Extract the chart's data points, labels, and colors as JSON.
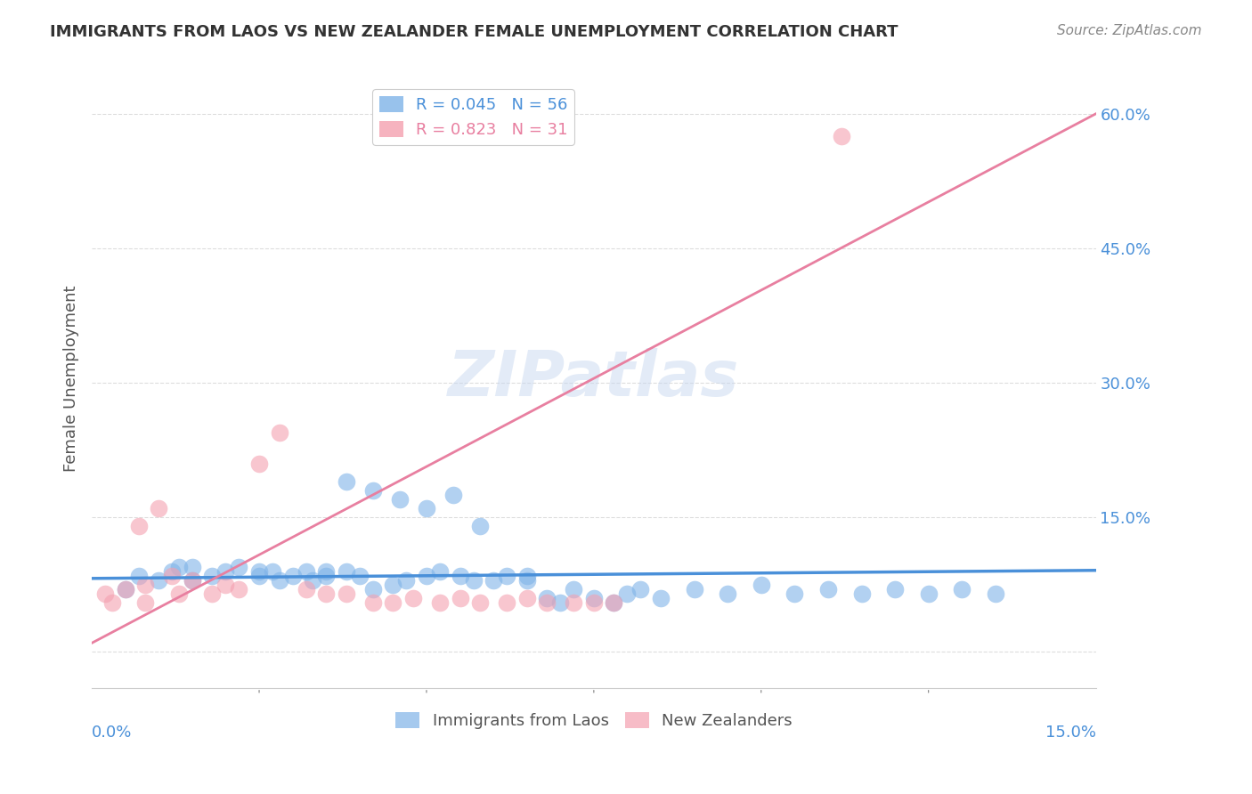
{
  "title": "IMMIGRANTS FROM LAOS VS NEW ZEALANDER FEMALE UNEMPLOYMENT CORRELATION CHART",
  "source": "Source: ZipAtlas.com",
  "ylabel": "Female Unemployment",
  "y_ticks": [
    0.0,
    0.15,
    0.3,
    0.45,
    0.6
  ],
  "y_tick_labels": [
    "",
    "15.0%",
    "30.0%",
    "45.0%",
    "60.0%"
  ],
  "x_range": [
    0.0,
    0.15
  ],
  "y_range": [
    -0.04,
    0.65
  ],
  "watermark": "ZIPatlas",
  "blue_color": "#7fb3e8",
  "pink_color": "#f4a0b0",
  "line_blue_color": "#4a90d9",
  "line_pink_color": "#e87fa0",
  "scatter_blue_x": [
    0.005,
    0.007,
    0.01,
    0.012,
    0.013,
    0.015,
    0.015,
    0.018,
    0.02,
    0.022,
    0.025,
    0.025,
    0.027,
    0.028,
    0.03,
    0.032,
    0.033,
    0.035,
    0.035,
    0.038,
    0.04,
    0.042,
    0.045,
    0.047,
    0.05,
    0.052,
    0.055,
    0.057,
    0.06,
    0.062,
    0.065,
    0.065,
    0.068,
    0.07,
    0.072,
    0.075,
    0.078,
    0.08,
    0.082,
    0.085,
    0.09,
    0.095,
    0.1,
    0.105,
    0.11,
    0.115,
    0.12,
    0.125,
    0.13,
    0.135,
    0.038,
    0.042,
    0.046,
    0.05,
    0.054,
    0.058
  ],
  "scatter_blue_y": [
    0.07,
    0.085,
    0.08,
    0.09,
    0.095,
    0.08,
    0.095,
    0.085,
    0.09,
    0.095,
    0.09,
    0.085,
    0.09,
    0.08,
    0.085,
    0.09,
    0.08,
    0.09,
    0.085,
    0.09,
    0.085,
    0.07,
    0.075,
    0.08,
    0.085,
    0.09,
    0.085,
    0.08,
    0.08,
    0.085,
    0.085,
    0.08,
    0.06,
    0.055,
    0.07,
    0.06,
    0.055,
    0.065,
    0.07,
    0.06,
    0.07,
    0.065,
    0.075,
    0.065,
    0.07,
    0.065,
    0.07,
    0.065,
    0.07,
    0.065,
    0.19,
    0.18,
    0.17,
    0.16,
    0.175,
    0.14
  ],
  "scatter_pink_x": [
    0.002,
    0.003,
    0.005,
    0.007,
    0.008,
    0.01,
    0.012,
    0.013,
    0.015,
    0.018,
    0.02,
    0.022,
    0.025,
    0.028,
    0.032,
    0.035,
    0.038,
    0.042,
    0.045,
    0.048,
    0.052,
    0.055,
    0.058,
    0.062,
    0.065,
    0.068,
    0.072,
    0.075,
    0.078,
    0.112,
    0.008
  ],
  "scatter_pink_y": [
    0.065,
    0.055,
    0.07,
    0.14,
    0.075,
    0.16,
    0.085,
    0.065,
    0.08,
    0.065,
    0.075,
    0.07,
    0.21,
    0.245,
    0.07,
    0.065,
    0.065,
    0.055,
    0.055,
    0.06,
    0.055,
    0.06,
    0.055,
    0.055,
    0.06,
    0.055,
    0.055,
    0.055,
    0.055,
    0.575,
    0.055
  ],
  "blue_line_x": [
    0.0,
    0.15
  ],
  "blue_line_y": [
    0.082,
    0.091
  ],
  "pink_line_x": [
    0.0,
    0.15
  ],
  "pink_line_y": [
    0.01,
    0.6
  ],
  "grid_color": "#dddddd",
  "title_color": "#333333",
  "axis_label_color": "#4a90d9",
  "tick_label_color": "#4a90d9",
  "minor_xticks": [
    0.025,
    0.05,
    0.075,
    0.1,
    0.125
  ],
  "legend_blue_label": "R = 0.045   N = 56",
  "legend_pink_label": "R = 0.823   N = 31",
  "bottom_legend_blue": "Immigrants from Laos",
  "bottom_legend_pink": "New Zealanders"
}
